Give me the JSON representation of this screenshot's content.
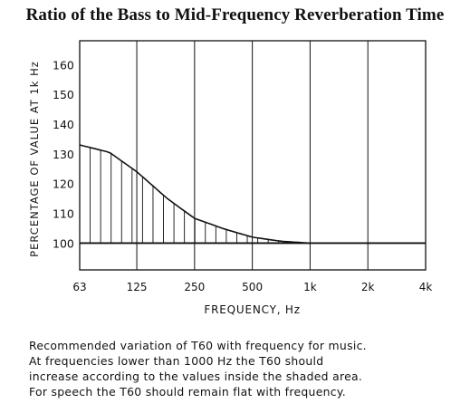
{
  "chart_data": {
    "type": "area",
    "title": "Ratio of the Bass to Mid-Frequency Reverberation Time",
    "xlabel": "FREQUENCY,  Hz",
    "ylabel": "PERCENTAGE OF VALUE AT 1k Hz",
    "x_scale": "log2",
    "x_ticks": [
      "63",
      "125",
      "250",
      "500",
      "1k",
      "2k",
      "4k"
    ],
    "x_tick_values": [
      63,
      125,
      250,
      500,
      1000,
      2000,
      4000
    ],
    "y_ticks": [
      "100",
      "110",
      "120",
      "130",
      "140",
      "150",
      "160"
    ],
    "y_tick_values": [
      100,
      110,
      120,
      130,
      140,
      150,
      160
    ],
    "ylim": [
      91,
      168
    ],
    "grid": "vertical lines at each octave",
    "series": [
      {
        "name": "",
        "role": "upper limit of shaded area",
        "x": [
          63,
          90,
          125,
          180,
          250,
          355,
          500,
          710,
          1000
        ],
        "y": [
          133,
          130.5,
          124,
          115,
          108.3,
          104.8,
          102,
          100.6,
          100
        ]
      },
      {
        "name": "",
        "role": "flat reference",
        "x": [
          63,
          4000
        ],
        "y": [
          100,
          100
        ]
      }
    ]
  },
  "caption": {
    "lines": [
      "Recommended variation of  T60  with frequency for music.",
      "At frequencies lower than 1000 Hz the  T60  should",
      "increase according to the values inside the shaded area.",
      "For speech the  T60  should remain flat with frequency."
    ]
  }
}
